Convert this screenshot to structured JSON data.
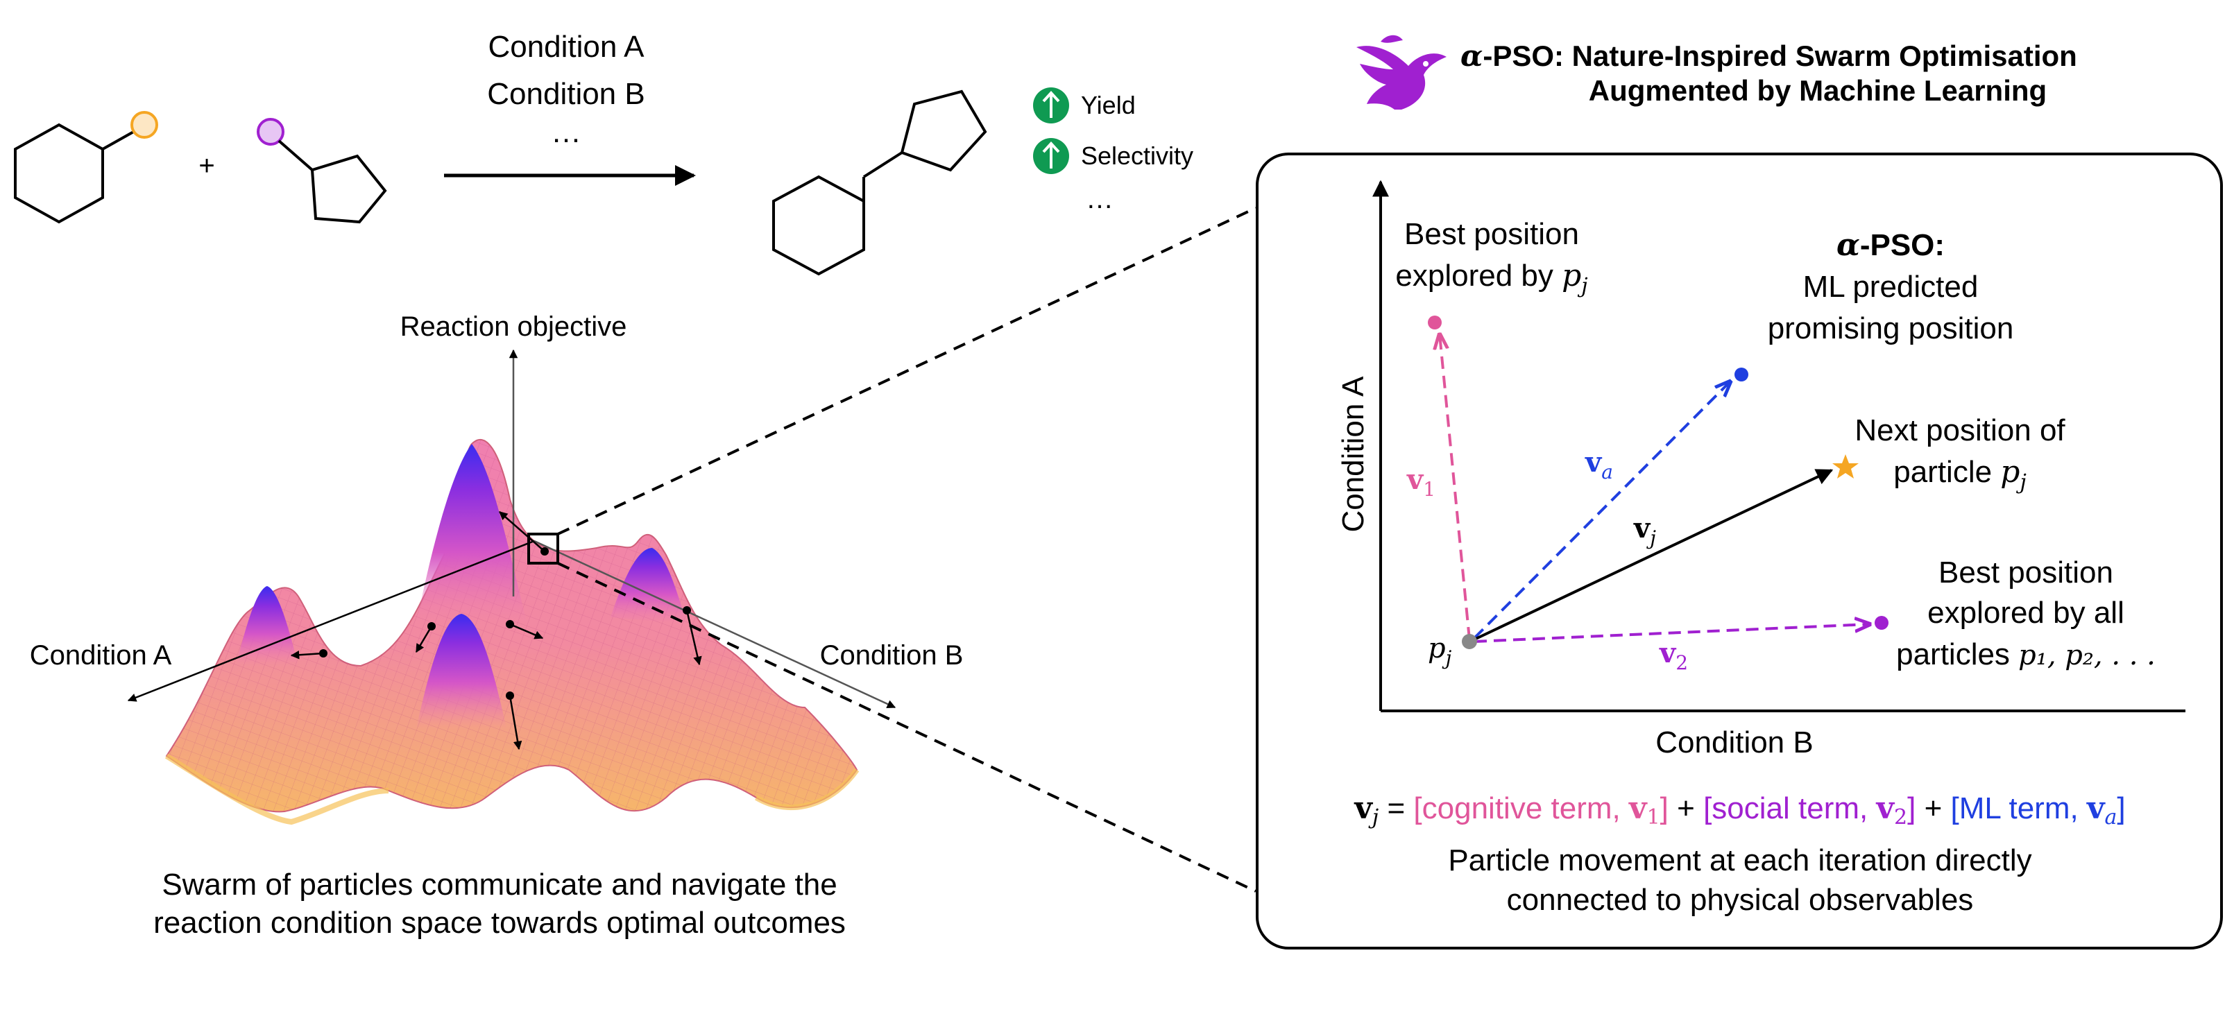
{
  "reaction": {
    "plus": "+",
    "condition_a": "Condition A",
    "condition_b": "Condition B",
    "ellipsis": "…",
    "outcomes": [
      {
        "label": "Yield",
        "icon": "arrow-up-icon"
      },
      {
        "label": "Selectivity",
        "icon": "arrow-up-icon"
      }
    ],
    "outcome_ellipsis": "…"
  },
  "header": {
    "logo_icon": "bird-icon",
    "title_prefix": "α",
    "title_line1": "-PSO: Nature-Inspired Swarm Optimisation",
    "title_line2": "Augmented by Machine Learning"
  },
  "landscape": {
    "z_axis_label": "Reaction objective",
    "axis_a_label": "Condition A",
    "axis_b_label": "Condition B",
    "caption_line1": "Swarm of particles communicate and navigate the",
    "caption_line2": "reaction condition space towards optimal outcomes"
  },
  "panel": {
    "y_axis_label": "Condition A",
    "x_axis_label": "Condition B",
    "best_own_line1": "Best position",
    "best_own_line2": "explored by",
    "alpha_line1_greek": "α",
    "alpha_line1": "-PSO:",
    "alpha_line2": "ML predicted",
    "alpha_line3": "promising position",
    "next_line1": "Next position of",
    "next_line2": "particle",
    "best_all_line1": "Best position",
    "best_all_line2": "explored by all",
    "best_all_line3": "particles",
    "particle_symbol": "p",
    "particle_sub": "j",
    "particles_list": "p₁, p₂, . . .",
    "v1_label": "v",
    "v1_sub": "1",
    "v2_label": "v",
    "v2_sub": "2",
    "va_label": "v",
    "va_sub": "a",
    "vj_label": "v",
    "vj_sub": "j",
    "equation": {
      "lhs": "v",
      "lhs_sub": "j",
      "equals": "=",
      "cognitive": "[cognitive term,",
      "social": "[social term,",
      "ml": "[ML term,",
      "plus": "+",
      "close": "]"
    },
    "caption_line1": "Particle movement at each iteration directly",
    "caption_line2": "connected to physical observables"
  },
  "colors": {
    "cognitive": "#e0559a",
    "social": "#a020d0",
    "ml": "#1f3fe0",
    "star": "#f5a623",
    "green": "#0f9a52",
    "orange_atom": "#f5a623",
    "purple_atom": "#a020d0"
  }
}
